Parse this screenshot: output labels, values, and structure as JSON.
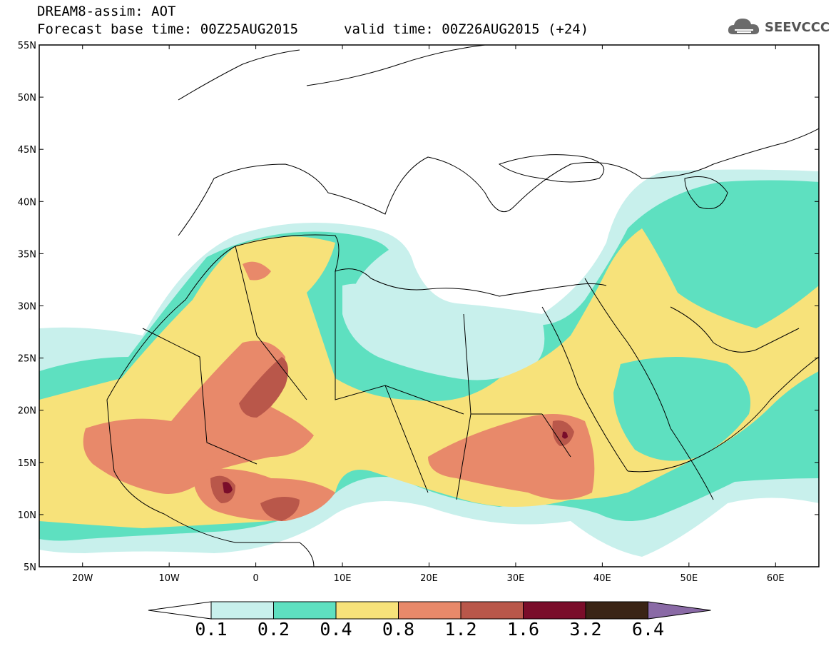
{
  "title": {
    "line1": "DREAM8-assim: AOT",
    "line2_left": "Forecast base time: 00Z25AUG2015",
    "line2_right": "valid time: 00Z26AUG2015 (+24)"
  },
  "logo": {
    "text": "SEEVCCC",
    "icon": "cloud-icon"
  },
  "map": {
    "lat_labels": [
      "55N",
      "50N",
      "45N",
      "40N",
      "35N",
      "30N",
      "25N",
      "20N",
      "15N",
      "10N",
      "5N"
    ],
    "lon_labels": [
      "20W",
      "10W",
      "0",
      "10E",
      "20E",
      "30E",
      "40E",
      "50E",
      "60E"
    ],
    "extent": {
      "lon": [
        -25,
        65
      ],
      "lat": [
        5,
        55
      ]
    }
  },
  "colorbar": {
    "labels": [
      "0.1",
      "0.2",
      "0.4",
      "0.8",
      "1.2",
      "1.6",
      "3.2",
      "6.4"
    ],
    "colors": [
      "#c8f0ec",
      "#5ee0c0",
      "#f7e27a",
      "#e8896a",
      "#b9574a",
      "#7a0d2a",
      "#3a2415",
      "#8a6aa6"
    ],
    "low_color": "#ffffff",
    "high_color": "#8a6aa6"
  }
}
